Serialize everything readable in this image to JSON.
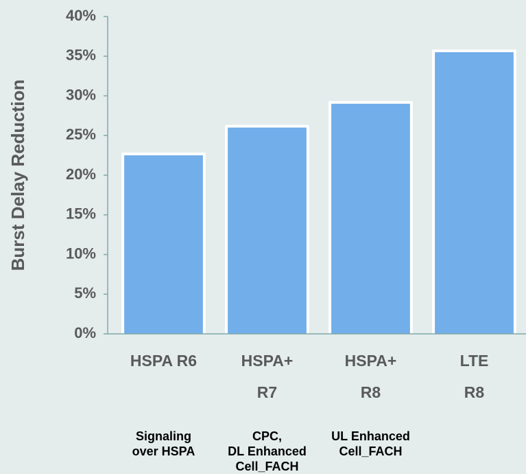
{
  "chart_data": {
    "type": "bar",
    "y_axis_label": "Burst Delay Reduction",
    "categories": [
      "HSPA R6",
      "HSPA+\nR7",
      "HSPA+\nR8",
      "LTE R8"
    ],
    "sublabels": [
      "Signaling\nover HSPA",
      "CPC,\nDL Enhanced\nCell_FACH",
      "UL Enhanced\nCell_FACH",
      null
    ],
    "values": [
      22.5,
      26,
      29,
      35.5
    ],
    "color": "#72aeea",
    "ylim": [
      0,
      40
    ],
    "yticks": [
      {
        "value": 0,
        "label": "0%"
      },
      {
        "value": 5,
        "label": "5%"
      },
      {
        "value": 10,
        "label": "10%"
      },
      {
        "value": 15,
        "label": "15%"
      },
      {
        "value": 20,
        "label": "20%"
      },
      {
        "value": 25,
        "label": "25%"
      },
      {
        "value": 30,
        "label": "30%"
      },
      {
        "value": 35,
        "label": "35%"
      },
      {
        "value": 40,
        "label": "40%"
      }
    ],
    "grid": false
  }
}
